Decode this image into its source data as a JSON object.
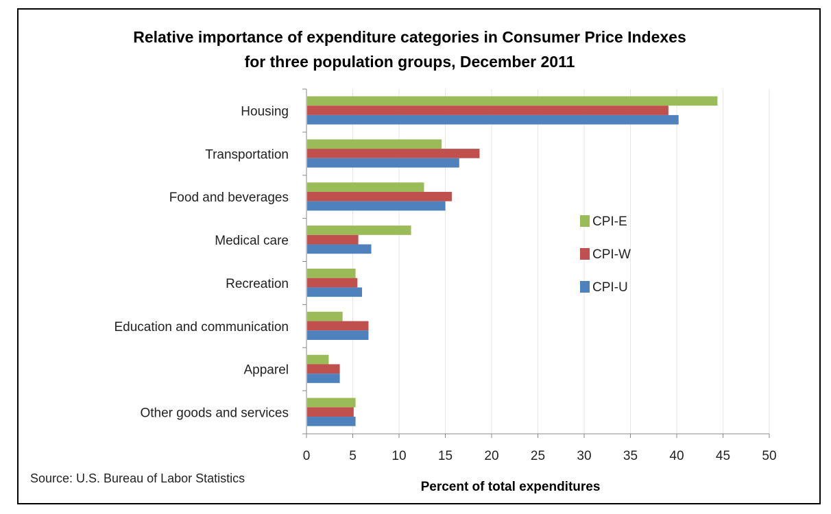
{
  "chart_data": {
    "type": "bar",
    "orientation": "horizontal",
    "title": "Relative importance of expenditure categories in Consumer Price Indexes for three population groups, December 2011",
    "title_lines": [
      "Relative importance of expenditure categories in Consumer Price Indexes",
      "for three population groups, December 2011"
    ],
    "categories": [
      "Housing",
      "Transportation",
      "Food and beverages",
      "Medical care",
      "Recreation",
      "Education and communication",
      "Apparel",
      "Other goods and services"
    ],
    "series": [
      {
        "name": "CPI-E",
        "color": "#9BBB59",
        "values": [
          44.4,
          14.6,
          12.7,
          11.3,
          5.3,
          3.9,
          2.4,
          5.3
        ]
      },
      {
        "name": "CPI-W",
        "color": "#C0504D",
        "values": [
          39.1,
          18.7,
          15.7,
          5.6,
          5.5,
          6.7,
          3.6,
          5.1
        ]
      },
      {
        "name": "CPI-U",
        "color": "#4F81BD",
        "values": [
          40.2,
          16.5,
          15.0,
          7.0,
          6.0,
          6.7,
          3.6,
          5.3
        ]
      }
    ],
    "xlabel": "Percent of total expenditures",
    "ylabel": "",
    "xlim": [
      0,
      50
    ],
    "xticks": [
      "0",
      "5",
      "10",
      "15",
      "20",
      "25",
      "30",
      "35",
      "40",
      "45",
      "50"
    ],
    "grid": true,
    "legend_position": "right-center",
    "source": "Source: U.S. Bureau of Labor Statistics"
  }
}
